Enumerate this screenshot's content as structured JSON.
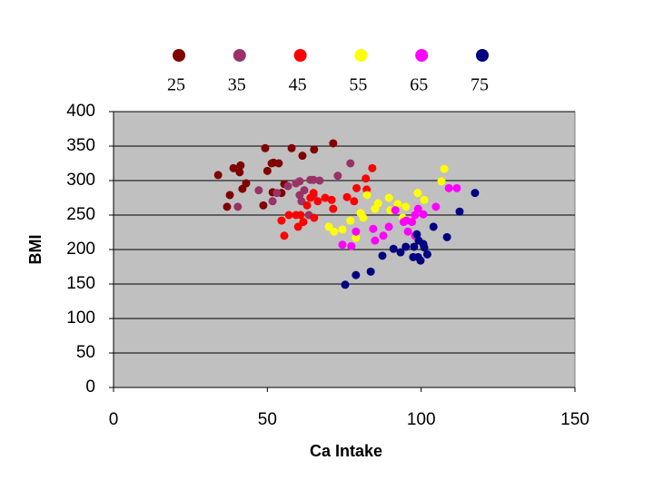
{
  "chart_data": {
    "type": "scatter",
    "x_label": "Ca Intake",
    "y_label": "BMI",
    "xlim": [
      0,
      150
    ],
    "xticks": [
      0,
      50,
      100,
      150
    ],
    "ylim": [
      0,
      400
    ],
    "yticks": [
      0,
      50,
      100,
      150,
      200,
      250,
      300,
      350,
      400
    ],
    "grid": true,
    "plot_background": "#c0c0c0",
    "legend": "top",
    "series": [
      {
        "name": "25",
        "color": "#800000",
        "x": [
          34,
          37.8,
          36.9,
          39,
          41.3,
          41,
          43.1,
          41.9,
          49.3,
          51.4,
          53.7,
          52,
          55.5,
          57.9,
          61.4,
          65.2,
          71.4,
          51.7,
          48.7,
          54.6,
          50
        ],
        "values": [
          308,
          279,
          262,
          318,
          322,
          312,
          296,
          288,
          347,
          325,
          325,
          326,
          295,
          347,
          336,
          345,
          354,
          283,
          264,
          282,
          314
        ]
      },
      {
        "name": "35",
        "color": "#993366",
        "x": [
          40.4,
          47.2,
          51.7,
          53.1,
          56.7,
          59.3,
          60.5,
          62,
          64,
          65,
          67,
          65,
          63.5,
          72.9,
          77,
          61.1,
          60.5
        ],
        "values": [
          262,
          286,
          270,
          282,
          292,
          296,
          299,
          286,
          301,
          301,
          300,
          279,
          250,
          307,
          325,
          270,
          279
        ]
      },
      {
        "name": "45",
        "color": "#ff0000",
        "x": [
          54.6,
          55.5,
          57,
          59.3,
          60.8,
          60,
          61.7,
          64,
          65,
          66.4,
          68.8,
          70.9,
          71.4,
          75.9,
          78.2,
          79,
          82,
          84.1,
          82.3,
          65.2,
          62.9
        ],
        "values": [
          242,
          220,
          250,
          250,
          250,
          233,
          240,
          275,
          282,
          270,
          275,
          272,
          259,
          276,
          270,
          289,
          303,
          318,
          287,
          246,
          264
        ]
      },
      {
        "name": "55",
        "color": "#ffff00",
        "x": [
          70,
          71.7,
          74.4,
          77,
          78.8,
          80.3,
          81.2,
          82.4,
          85,
          86,
          89.5,
          92.4,
          95,
          98.9,
          101,
          106.6,
          107.5,
          94,
          90
        ],
        "values": [
          233,
          226,
          229,
          242,
          217,
          253,
          246,
          279,
          259,
          267,
          275,
          266,
          262,
          282,
          272,
          299,
          317,
          246,
          257
        ]
      },
      {
        "name": "65",
        "color": "#ff00ff",
        "x": [
          74.4,
          77.3,
          78.8,
          84.4,
          85,
          87.7,
          89.5,
          91.6,
          94.3,
          95.2,
          97,
          98,
          99,
          98,
          100.7,
          104.8,
          109,
          111.6,
          95.7
        ],
        "values": [
          207,
          205,
          226,
          230,
          213,
          220,
          233,
          257,
          240,
          242,
          240,
          250,
          259,
          220,
          251,
          262,
          289,
          289,
          226
        ]
      },
      {
        "name": "75",
        "color": "#000080",
        "x": [
          75.3,
          78.8,
          83.6,
          87.4,
          91,
          93.3,
          95,
          97.7,
          99,
          99.8,
          101,
          102,
          100.7,
          104,
          108.4,
          112.5,
          117.5,
          98.6,
          99.2,
          97.4
        ],
        "values": [
          149,
          163,
          168,
          191,
          201,
          196,
          204,
          204,
          189,
          184,
          203,
          193,
          208,
          233,
          218,
          255,
          282,
          222,
          213,
          189
        ]
      }
    ]
  }
}
